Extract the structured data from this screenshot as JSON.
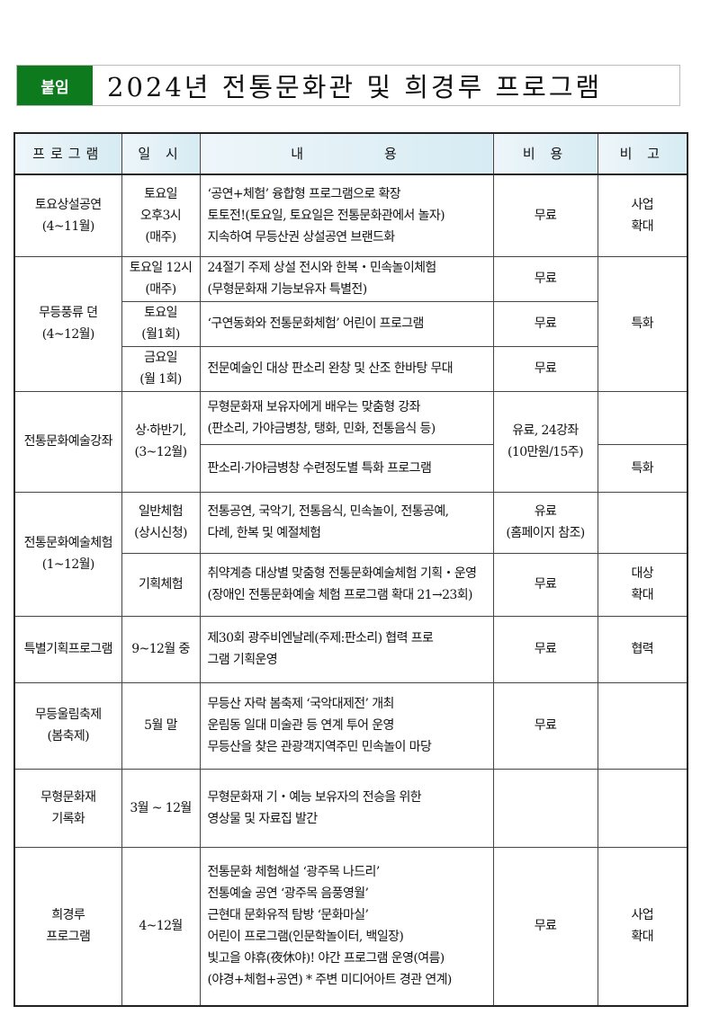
{
  "header": {
    "badge": "붙임",
    "title": "2024년 전통문화관 및 희경루 프로그램"
  },
  "columns": [
    "프로그램",
    "일 시",
    "내　　　　용",
    "비 용",
    "비 고"
  ],
  "rows": [
    {
      "program": [
        "토요상설공연",
        "(4~11월)"
      ],
      "date": [
        "토요일",
        "오후3시",
        "(매주)"
      ],
      "content": [
        "‘공연+체험’ 융합형 프로그램으로 확장",
        "토토전!(토요일, 토요일은 전통문화관에서 놀자)",
        "지속하여 무등산권 상설공연 브랜드화"
      ],
      "cost": [
        "무료"
      ],
      "remark": [
        "사업",
        "확대"
      ]
    },
    {
      "program": [
        "무등풍류 뎐",
        "(4~12월)"
      ],
      "remark": [
        "특화"
      ],
      "sub": [
        {
          "date": [
            "토요일 12시",
            "(매주)"
          ],
          "content": [
            "24절기 주제 상설 전시와 한복・민속놀이체험",
            "(무형문화재 기능보유자 특별전)"
          ],
          "cost": [
            "무료"
          ]
        },
        {
          "date": [
            "토요일",
            "(월1회)"
          ],
          "content": [
            "‘구연동화와 전통문화체험’ 어린이 프로그램"
          ],
          "cost": [
            "무료"
          ]
        },
        {
          "date": [
            "금요일",
            "(월 1회)"
          ],
          "content": [
            "전문예술인 대상 판소리 완창 및 산조 한바탕 무대"
          ],
          "cost": [
            "무료"
          ]
        }
      ]
    },
    {
      "program": [
        "전통문화예술강좌"
      ],
      "date": [
        "상·하반기,",
        "(3~12월)"
      ],
      "cost": [
        "유료, 24강좌",
        "(10만원/15주)"
      ],
      "sub": [
        {
          "content": [
            "무형문화재 보유자에게 배우는 맞춤형 강좌",
            "(판소리, 가야금병창, 탱화, 민화, 전통음식 등)"
          ],
          "remark": []
        },
        {
          "content": [
            "판소리·가야금병창 수련정도별 특화 프로그램"
          ],
          "remark": [
            "특화"
          ]
        }
      ]
    },
    {
      "program": [
        "전통문화예술체험",
        "(1~12월)"
      ],
      "sub": [
        {
          "date": [
            "일반체험",
            "(상시신청)"
          ],
          "content": [
            "전통공연, 국악기, 전통음식, 민속놀이, 전통공예,",
            "다례, 한복 및 예절체험"
          ],
          "cost": [
            "유료",
            "(홈페이지 참조)"
          ],
          "remark": []
        },
        {
          "date": [
            "기획체험"
          ],
          "content": [
            "취약계층 대상별 맞춤형 전통문화예술체험 기획・운영",
            "(장애인 전통문화예술 체험 프로그램 확대 21→23회)"
          ],
          "cost": [
            "무료"
          ],
          "remark": [
            "대상",
            "확대"
          ]
        }
      ]
    },
    {
      "program": [
        "특별기획프로그램"
      ],
      "date": [
        "9~12월 중"
      ],
      "content": [
        "제30회 광주비엔날레(주제:판소리) 협력 프로",
        "그램 기획운영"
      ],
      "cost": [
        "무료"
      ],
      "remark": [
        "협력"
      ]
    },
    {
      "program": [
        "무등울림축제",
        "(봄축제)"
      ],
      "date": [
        "5월 말"
      ],
      "content": [
        "무등산 자락 봄축제 ‘국악대제전’ 개최",
        "운림동 일대 미술관 등 연계 투어 운영",
        "무등산을 찾은 관광객지역주민 민속놀이 마당"
      ],
      "cost": [
        "무료"
      ],
      "remark": []
    },
    {
      "program": [
        "무형문화재",
        "기록화"
      ],
      "date": [
        "3월 ~ 12월"
      ],
      "content": [
        "무형문화재 기・예능 보유자의 전승을 위한",
        "영상물 및 자료집 발간"
      ],
      "cost": [],
      "remark": []
    },
    {
      "program": [
        "희경루",
        "프로그램"
      ],
      "date": [
        "4~12월"
      ],
      "content": [
        "전통문화 체험해설 ‘광주목 나드리’",
        "전통예술 공연 ‘광주목 음풍영월’",
        "근현대 문화유적 탐방 ‘문화마실’",
        "어린이 프로그램(인문학놀이터, 백일장)",
        "빛고을 야휴(夜休야)! 야간 프로그램 운영(여름)",
        "(야경+체험+공연) * 주변 미디어아트 경관 연계)"
      ],
      "cost": [
        "무료"
      ],
      "remark": [
        "사업",
        "확대"
      ]
    }
  ]
}
